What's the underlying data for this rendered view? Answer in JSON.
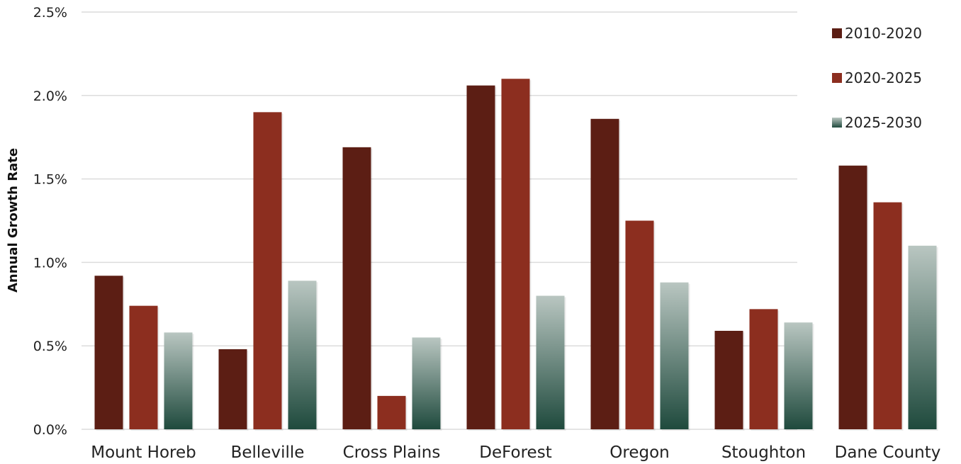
{
  "chart_data": {
    "type": "bar",
    "title": "",
    "xlabel": "",
    "ylabel": "Annual Growth Rate",
    "ylim": [
      0,
      2.5
    ],
    "yticks": [
      "0.0%",
      "0.5%",
      "1.0%",
      "1.5%",
      "2.0%",
      "2.5%"
    ],
    "y_unit": "%",
    "grid": true,
    "legend_position": "top-right",
    "categories": [
      "Mount Horeb",
      "Belleville",
      "Cross Plains",
      "DeForest",
      "Oregon",
      "Stoughton",
      "Dane County"
    ],
    "series": [
      {
        "name": "2010-2020",
        "color": "#5c1e14",
        "values": [
          0.92,
          0.48,
          1.69,
          2.06,
          1.86,
          0.59,
          1.58
        ]
      },
      {
        "name": "2020-2025",
        "color": "#8c2e1f",
        "values": [
          0.74,
          1.9,
          0.2,
          2.1,
          1.25,
          0.72,
          1.36
        ]
      },
      {
        "name": "2025-2030",
        "color": "#1f4a3d",
        "gradient_top": "#b9c6c1",
        "gradient_bottom": "#1f4a3d",
        "values": [
          0.58,
          0.89,
          0.55,
          0.8,
          0.88,
          0.64,
          1.1
        ]
      }
    ]
  }
}
